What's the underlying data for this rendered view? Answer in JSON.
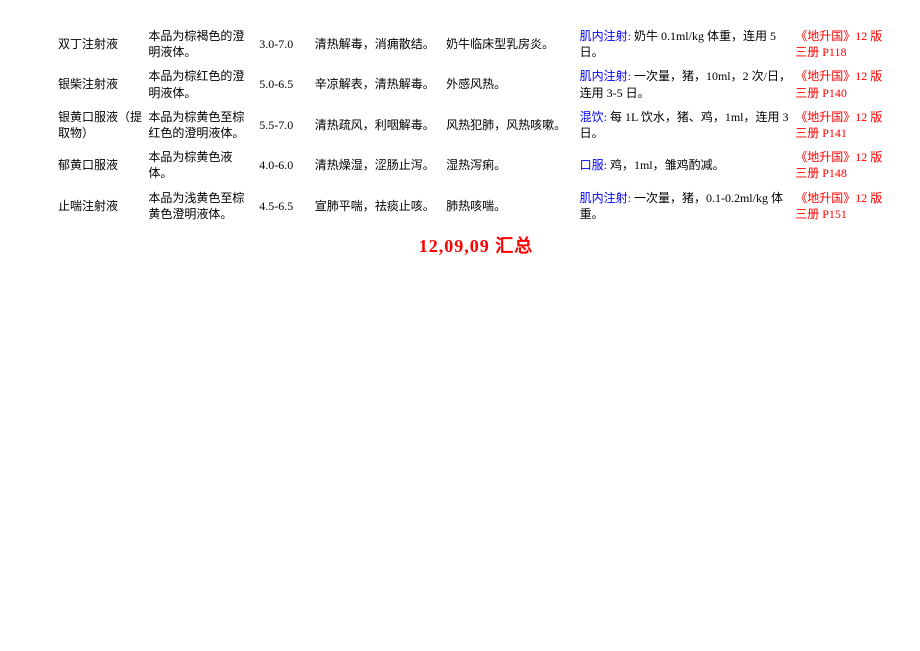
{
  "colors": {
    "text": "#000000",
    "blue": "#0000ff",
    "red": "#ff0000",
    "background": "#ffffff"
  },
  "typography": {
    "body_fontsize_pt": 9,
    "footer_fontsize_pt": 14,
    "footer_weight": "bold",
    "font_family": "SimSun"
  },
  "rows": [
    {
      "name": "双丁注射液",
      "desc": "本品为棕褐色的澄明液体。",
      "ph": "3.0-7.0",
      "func": "清热解毒，消痈散结。",
      "indic": "奶牛临床型乳房炎。",
      "usage_prefix": "肌内注射:",
      "usage": "奶牛 0.1ml/kg 体重，连用 5 日。",
      "ref": "《地升国》12 版三册 P118"
    },
    {
      "name": "银柴注射液",
      "desc": "本品为棕红色的澄明液体。",
      "ph": "5.0-6.5",
      "func": "辛凉解表，清热解毒。",
      "indic": "外感风热。",
      "usage_prefix": "肌内注射:",
      "usage": "一次量，猪，10ml，2 次/日，连用 3-5 日。",
      "ref": "《地升国》12 版三册 P140"
    },
    {
      "name": "银黄口服液（提取物）",
      "desc": "本品为棕黄色至棕红色的澄明液体。",
      "ph": "5.5-7.0",
      "func": "清热疏风，利咽解毒。",
      "indic": "风热犯肺，风热咳嗽。",
      "usage_prefix": "混饮:",
      "usage": "每 1L 饮水，猪、鸡，1ml，连用 3 日。",
      "ref": "《地升国》12 版三册 P141"
    },
    {
      "name": "郁黄口服液",
      "desc": "本品为棕黄色液体。",
      "ph": "4.0-6.0",
      "func": "清热燥湿，涩肠止泻。",
      "indic": "湿热泻痢。",
      "usage_prefix": "口服:",
      "usage": "鸡，1ml，雏鸡酌减。",
      "ref": "《地升国》12 版三册 P148"
    },
    {
      "name": "止喘注射液",
      "desc": "本品为浅黄色至棕黄色澄明液体。",
      "ph": "4.5-6.5",
      "func": "宣肺平喘，祛痰止咳。",
      "indic": "肺热咳喘。",
      "usage_prefix": "肌内注射:",
      "usage": "一次量，猪，0.1-0.2ml/kg 体重。",
      "ref": "《地升国》12 版三册 P151"
    }
  ],
  "footer": "12,09,09 汇总"
}
